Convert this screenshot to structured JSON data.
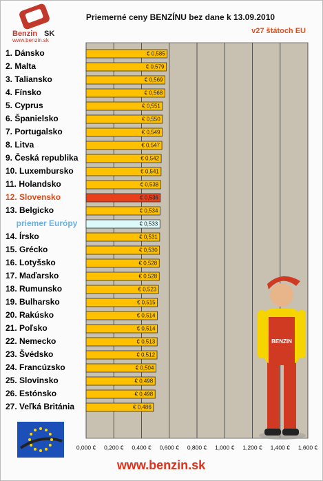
{
  "chart_data": {
    "type": "hbar",
    "title": "Priemerné ceny BENZÍNU bez dane k 13.09.2010",
    "subtitle": "v27 štátoch EU",
    "logo": {
      "name": "Benzin",
      "suffix": "SK",
      "url": "www.benzin.sk"
    },
    "footer": "www.benzin.sk",
    "categories": [
      "1. Dánsko",
      "2. Malta",
      "3. Taliansko",
      "4. Fínsko",
      "5. Cyprus",
      "6. Španielsko",
      "7. Portugalsko",
      "8. Litva",
      "9. Česká republika",
      "10. Luxembursko",
      "11. Holandsko",
      "12. Slovensko",
      "13. Belgicko",
      "priemer Európy",
      "14. Írsko",
      "15. Grécko",
      "16. Lotyšsko",
      "17. Maďarsko",
      "18. Rumunsko",
      "19. Bulharsko",
      "20. Rakúsko",
      "21. Poľsko",
      "22. Nemecko",
      "23. Švédsko",
      "24. Francúzsko",
      "25. Slovinsko",
      "26. Estónsko",
      "27. Veľká Británia"
    ],
    "values": [
      0.585,
      0.579,
      0.569,
      0.568,
      0.551,
      0.55,
      0.549,
      0.547,
      0.542,
      0.541,
      0.538,
      0.536,
      0.534,
      0.533,
      0.531,
      0.53,
      0.528,
      0.528,
      0.523,
      0.515,
      0.514,
      0.514,
      0.513,
      0.512,
      0.504,
      0.498,
      0.498,
      0.486
    ],
    "value_labels": [
      "€ 0,585",
      "€ 0,579",
      "€ 0,569",
      "€ 0,568",
      "€ 0,551",
      "€ 0,550",
      "€ 0,549",
      "€ 0,547",
      "€ 0,542",
      "€ 0,541",
      "€ 0,538",
      "€ 0,536",
      "€ 0,534",
      "€ 0,533",
      "€ 0,531",
      "€ 0,530",
      "€ 0,528",
      "€ 0,528",
      "€ 0,523",
      "€ 0,515",
      "€ 0,514",
      "€ 0,514",
      "€ 0,513",
      "€ 0,512",
      "€ 0,504",
      "€ 0,498",
      "€ 0,498",
      "€ 0,486"
    ],
    "colors": [
      "#ffc000",
      "#ffc000",
      "#ffc000",
      "#ffc000",
      "#ffc000",
      "#ffc000",
      "#ffc000",
      "#ffc000",
      "#ffc000",
      "#ffc000",
      "#ffc000",
      "#e8401a",
      "#ffc000",
      "#dcfafa",
      "#ffc000",
      "#ffc000",
      "#ffc000",
      "#ffc000",
      "#ffc000",
      "#ffc000",
      "#ffc000",
      "#ffc000",
      "#ffc000",
      "#ffc000",
      "#ffc000",
      "#ffc000",
      "#ffc000",
      "#ffc000"
    ],
    "label_colors": [
      "#000",
      "#000",
      "#000",
      "#000",
      "#000",
      "#000",
      "#000",
      "#000",
      "#000",
      "#000",
      "#000",
      "#e04a1a",
      "#000",
      "#6ab0e0",
      "#000",
      "#000",
      "#000",
      "#000",
      "#000",
      "#000",
      "#000",
      "#000",
      "#000",
      "#000",
      "#000",
      "#000",
      "#000",
      "#000"
    ],
    "xlim": [
      0,
      1.6
    ],
    "xticks": [
      {
        "value": 0,
        "label": "0,000 €"
      },
      {
        "value": 0.2,
        "label": "0,200 €"
      },
      {
        "value": 0.4,
        "label": "0,400 €"
      },
      {
        "value": 0.6,
        "label": "0,600 €"
      },
      {
        "value": 0.8,
        "label": "0,800 €"
      },
      {
        "value": 1.0,
        "label": "1,000 €"
      },
      {
        "value": 1.2,
        "label": "1,200 €"
      },
      {
        "value": 1.4,
        "label": "1,400 €"
      },
      {
        "value": 1.6,
        "label": "1,600 €"
      }
    ],
    "grid": true
  }
}
